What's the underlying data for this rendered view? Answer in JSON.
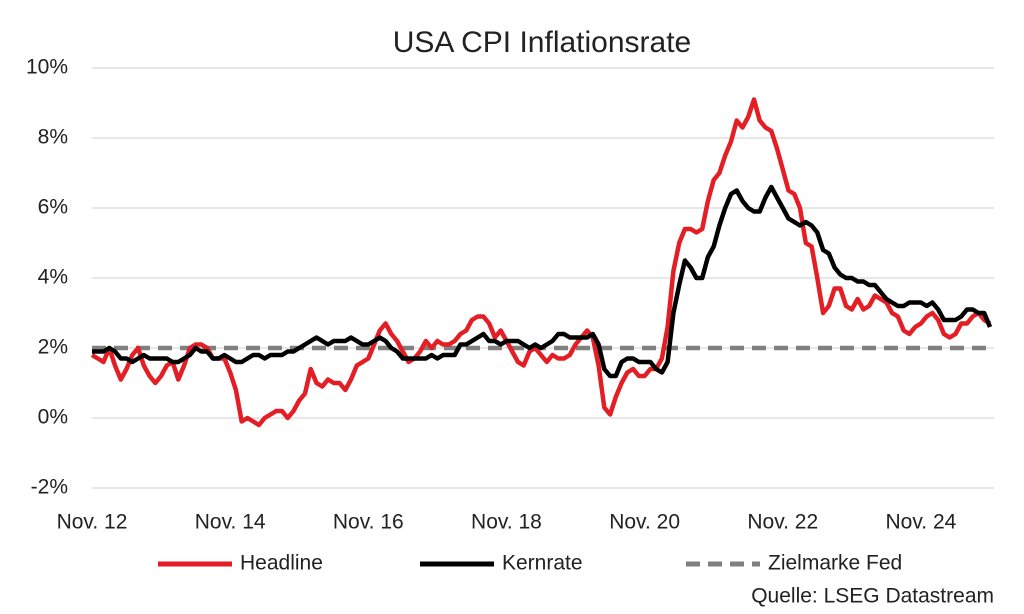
{
  "chart_data": {
    "type": "line",
    "title": "USA CPI Inflationsrate",
    "categories": [
      "Nov. 12",
      null,
      null,
      null,
      null,
      null,
      null,
      null,
      null,
      null,
      null,
      null,
      null,
      null,
      null,
      null,
      null,
      null,
      null,
      null,
      null,
      null,
      null,
      null,
      "Nov. 14",
      null,
      null,
      null,
      null,
      null,
      null,
      null,
      null,
      null,
      null,
      null,
      null,
      null,
      null,
      null,
      null,
      null,
      null,
      null,
      null,
      null,
      null,
      null,
      "Nov. 16",
      null,
      null,
      null,
      null,
      null,
      null,
      null,
      null,
      null,
      null,
      null,
      null,
      null,
      null,
      null,
      null,
      null,
      null,
      null,
      null,
      null,
      null,
      null,
      "Nov. 18",
      null,
      null,
      null,
      null,
      null,
      null,
      null,
      null,
      null,
      null,
      null,
      null,
      null,
      null,
      null,
      null,
      null,
      null,
      null,
      null,
      null,
      null,
      null,
      "Nov. 20",
      null,
      null,
      null,
      null,
      null,
      null,
      null,
      null,
      null,
      null,
      null,
      null,
      null,
      null,
      null,
      null,
      null,
      null,
      null,
      null,
      null,
      null,
      null,
      "Nov. 22",
      null,
      null,
      null,
      null,
      null,
      null,
      null,
      null,
      null,
      null,
      null,
      null,
      null,
      null,
      null,
      null,
      null,
      null,
      null,
      null,
      null,
      null,
      null,
      "Nov. 24",
      null,
      null,
      null,
      null,
      null,
      null,
      null,
      null,
      null,
      null,
      null,
      null
    ],
    "series": [
      {
        "name": "Headline",
        "color": "#e31e24",
        "values": [
          1.8,
          1.7,
          1.6,
          2.0,
          1.5,
          1.1,
          1.4,
          1.8,
          2.0,
          1.5,
          1.2,
          1.0,
          1.2,
          1.5,
          1.6,
          1.1,
          1.5,
          2.0,
          2.1,
          2.1,
          2.0,
          1.7,
          1.7,
          1.7,
          1.3,
          0.8,
          -0.1,
          0.0,
          -0.1,
          -0.2,
          0.0,
          0.1,
          0.2,
          0.2,
          0.0,
          0.2,
          0.5,
          0.7,
          1.4,
          1.0,
          0.9,
          1.1,
          1.0,
          1.0,
          0.8,
          1.1,
          1.5,
          1.6,
          1.7,
          2.1,
          2.5,
          2.7,
          2.4,
          2.2,
          1.9,
          1.6,
          1.7,
          1.9,
          2.2,
          2.0,
          2.2,
          2.1,
          2.1,
          2.2,
          2.4,
          2.5,
          2.8,
          2.9,
          2.9,
          2.7,
          2.3,
          2.5,
          2.2,
          1.9,
          1.6,
          1.5,
          1.9,
          2.0,
          1.8,
          1.6,
          1.8,
          1.7,
          1.7,
          1.8,
          2.1,
          2.3,
          2.5,
          2.3,
          1.5,
          0.3,
          0.1,
          0.6,
          1.0,
          1.3,
          1.4,
          1.2,
          1.2,
          1.4,
          1.4,
          1.7,
          2.6,
          4.2,
          5.0,
          5.4,
          5.4,
          5.3,
          5.4,
          6.2,
          6.8,
          7.0,
          7.5,
          7.9,
          8.5,
          8.3,
          8.6,
          9.1,
          8.5,
          8.3,
          8.2,
          7.7,
          7.1,
          6.5,
          6.4,
          6.0,
          5.0,
          4.9,
          4.0,
          3.0,
          3.2,
          3.7,
          3.7,
          3.2,
          3.1,
          3.4,
          3.1,
          3.2,
          3.5,
          3.4,
          3.3,
          3.0,
          2.9,
          2.5,
          2.4,
          2.6,
          2.7,
          2.9,
          3.0,
          2.8,
          2.4,
          2.3,
          2.4,
          2.7,
          2.7,
          2.9,
          3.0,
          2.8,
          2.7
        ]
      },
      {
        "name": "Kernrate",
        "color": "#000000",
        "values": [
          1.9,
          1.9,
          1.9,
          2.0,
          1.9,
          1.7,
          1.7,
          1.6,
          1.7,
          1.8,
          1.7,
          1.7,
          1.7,
          1.7,
          1.6,
          1.6,
          1.7,
          1.8,
          2.0,
          1.9,
          1.9,
          1.7,
          1.7,
          1.8,
          1.7,
          1.6,
          1.6,
          1.7,
          1.8,
          1.8,
          1.7,
          1.8,
          1.8,
          1.8,
          1.9,
          1.9,
          2.0,
          2.1,
          2.2,
          2.3,
          2.2,
          2.1,
          2.2,
          2.2,
          2.2,
          2.3,
          2.2,
          2.1,
          2.1,
          2.2,
          2.3,
          2.2,
          2.0,
          1.9,
          1.7,
          1.7,
          1.7,
          1.7,
          1.7,
          1.8,
          1.7,
          1.8,
          1.8,
          1.8,
          2.1,
          2.1,
          2.2,
          2.3,
          2.4,
          2.2,
          2.2,
          2.1,
          2.2,
          2.2,
          2.2,
          2.1,
          2.0,
          2.1,
          2.0,
          2.1,
          2.2,
          2.4,
          2.4,
          2.3,
          2.3,
          2.3,
          2.3,
          2.4,
          2.1,
          1.4,
          1.2,
          1.2,
          1.6,
          1.7,
          1.7,
          1.6,
          1.6,
          1.6,
          1.4,
          1.3,
          1.6,
          3.0,
          3.8,
          4.5,
          4.3,
          4.0,
          4.0,
          4.6,
          4.9,
          5.5,
          6.0,
          6.4,
          6.5,
          6.2,
          6.0,
          5.9,
          5.9,
          6.3,
          6.6,
          6.3,
          6.0,
          5.7,
          5.6,
          5.5,
          5.6,
          5.5,
          5.3,
          4.8,
          4.7,
          4.3,
          4.1,
          4.0,
          4.0,
          3.9,
          3.9,
          3.8,
          3.8,
          3.6,
          3.4,
          3.3,
          3.2,
          3.2,
          3.3,
          3.3,
          3.3,
          3.2,
          3.3,
          3.1,
          2.8,
          2.8,
          2.8,
          2.9,
          3.1,
          3.1,
          3.0,
          3.0,
          2.6
        ]
      },
      {
        "name": "Zielmarke Fed",
        "color": "#808080",
        "dashed": true,
        "values": [
          2,
          2,
          2,
          2,
          2,
          2,
          2,
          2,
          2,
          2,
          2,
          2,
          2,
          2,
          2,
          2,
          2,
          2,
          2,
          2,
          2,
          2,
          2,
          2,
          2,
          2,
          2,
          2,
          2,
          2,
          2,
          2,
          2,
          2,
          2,
          2,
          2,
          2,
          2,
          2,
          2,
          2,
          2,
          2,
          2,
          2,
          2,
          2,
          2,
          2,
          2,
          2,
          2,
          2,
          2,
          2,
          2,
          2,
          2,
          2,
          2,
          2,
          2,
          2,
          2,
          2,
          2,
          2,
          2,
          2,
          2,
          2,
          2,
          2,
          2,
          2,
          2,
          2,
          2,
          2,
          2,
          2,
          2,
          2,
          2,
          2,
          2,
          2,
          2,
          2,
          2,
          2,
          2,
          2,
          2,
          2,
          2,
          2,
          2,
          2,
          2,
          2,
          2,
          2,
          2,
          2,
          2,
          2,
          2,
          2,
          2,
          2,
          2,
          2,
          2,
          2,
          2,
          2,
          2,
          2,
          2,
          2,
          2,
          2,
          2,
          2,
          2,
          2,
          2,
          2,
          2,
          2,
          2,
          2,
          2,
          2,
          2,
          2,
          2,
          2,
          2,
          2,
          2,
          2,
          2,
          2,
          2,
          2,
          2,
          2,
          2,
          2,
          2,
          2,
          2,
          2,
          2
        ]
      }
    ],
    "ylim": [
      -2,
      10
    ],
    "yticks": [
      {
        "value": -2,
        "label": "-2%"
      },
      {
        "value": 0,
        "label": "0%"
      },
      {
        "value": 2,
        "label": "2%"
      },
      {
        "value": 4,
        "label": "4%"
      },
      {
        "value": 6,
        "label": "6%"
      },
      {
        "value": 8,
        "label": "8%"
      },
      {
        "value": 10,
        "label": "10%"
      }
    ],
    "grid": true,
    "legend": "bottom",
    "source": "Quelle: LSEG Datastream"
  }
}
